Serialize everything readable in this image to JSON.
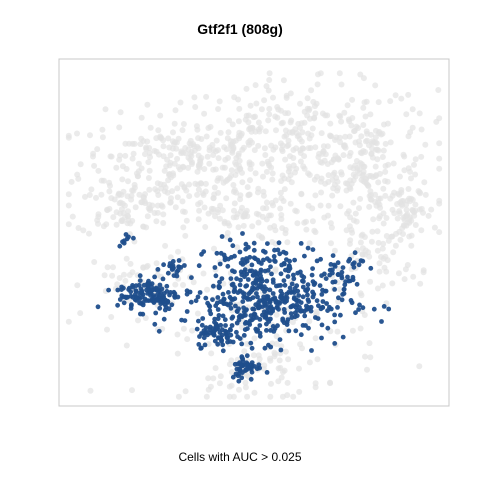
{
  "chart_data": {
    "type": "scatter",
    "title": "Gtf2f1 (808g)",
    "caption": "Cells with AUC > 0.025",
    "xlabel": "",
    "ylabel": "",
    "axes_visible": false,
    "grid": false,
    "legend": "none",
    "series": [
      {
        "role": "background",
        "color": "#e3e3e3",
        "clusters": [
          {
            "cx": 0.3,
            "cy": 0.72,
            "sx": 0.13,
            "sy": 0.07,
            "n": 220
          },
          {
            "cx": 0.62,
            "cy": 0.8,
            "sx": 0.18,
            "sy": 0.08,
            "n": 280
          },
          {
            "cx": 0.78,
            "cy": 0.66,
            "sx": 0.1,
            "sy": 0.09,
            "n": 180
          },
          {
            "cx": 0.15,
            "cy": 0.58,
            "sx": 0.06,
            "sy": 0.04,
            "n": 70
          },
          {
            "cx": 0.44,
            "cy": 0.57,
            "sx": 0.1,
            "sy": 0.05,
            "n": 110
          },
          {
            "cx": 0.91,
            "cy": 0.56,
            "sx": 0.03,
            "sy": 0.04,
            "n": 45
          },
          {
            "cx": 0.82,
            "cy": 0.45,
            "sx": 0.06,
            "sy": 0.06,
            "n": 70
          },
          {
            "cx": 0.52,
            "cy": 0.22,
            "sx": 0.16,
            "sy": 0.11,
            "n": 150
          },
          {
            "cx": 0.2,
            "cy": 0.36,
            "sx": 0.07,
            "sy": 0.05,
            "n": 50
          },
          {
            "cx": 0.5,
            "cy": 0.08,
            "sx": 0.06,
            "sy": 0.04,
            "n": 40
          }
        ]
      },
      {
        "role": "highlight",
        "label": "Cells with AUC > 0.025",
        "color": "#1f4e8c",
        "clusters": [
          {
            "cx": 0.53,
            "cy": 0.3,
            "sx": 0.11,
            "sy": 0.06,
            "n": 420
          },
          {
            "cx": 0.22,
            "cy": 0.32,
            "sx": 0.04,
            "sy": 0.025,
            "n": 120
          },
          {
            "cx": 0.41,
            "cy": 0.2,
            "sx": 0.03,
            "sy": 0.02,
            "n": 60
          },
          {
            "cx": 0.48,
            "cy": 0.1,
            "sx": 0.02,
            "sy": 0.02,
            "n": 45
          },
          {
            "cx": 0.5,
            "cy": 0.43,
            "sx": 0.06,
            "sy": 0.03,
            "n": 60
          },
          {
            "cx": 0.29,
            "cy": 0.4,
            "sx": 0.02,
            "sy": 0.015,
            "n": 20
          },
          {
            "cx": 0.16,
            "cy": 0.49,
            "sx": 0.01,
            "sy": 0.01,
            "n": 8
          },
          {
            "cx": 0.73,
            "cy": 0.4,
            "sx": 0.03,
            "sy": 0.03,
            "n": 25
          }
        ]
      }
    ]
  }
}
